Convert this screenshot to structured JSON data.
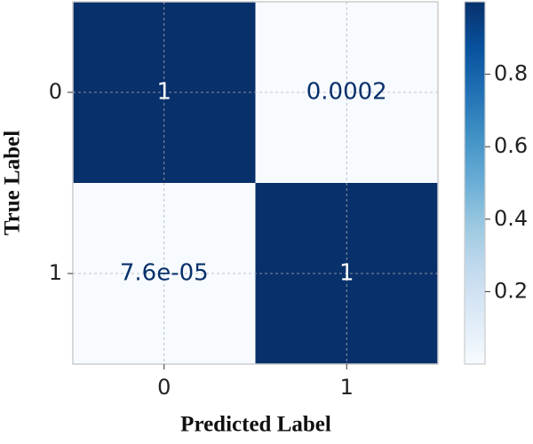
{
  "chart_data": {
    "type": "heatmap",
    "x_categories": [
      "0",
      "1"
    ],
    "y_categories": [
      "0",
      "1"
    ],
    "values": [
      [
        1,
        0.0002
      ],
      [
        7.6e-05,
        1
      ]
    ],
    "value_labels": [
      [
        "1",
        "0.0002"
      ],
      [
        "7.6e-05",
        "1"
      ]
    ],
    "xlabel": "Predicted Label",
    "ylabel": "True Label",
    "colormap": "Blues",
    "clim": [
      7.6e-05,
      1
    ],
    "colorbar_ticks": [
      0.2,
      0.4,
      0.6,
      0.8
    ],
    "grid": true
  }
}
